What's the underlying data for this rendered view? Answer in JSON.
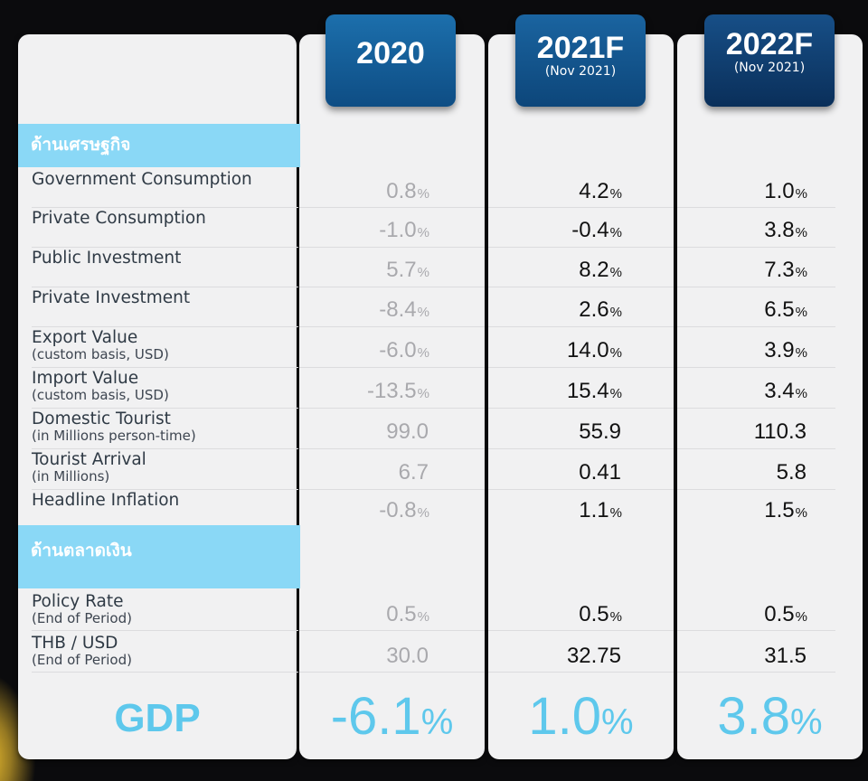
{
  "columns": [
    {
      "year": "2020",
      "sub": ""
    },
    {
      "year": "2021F",
      "sub": "(Nov 2021)"
    },
    {
      "year": "2022F",
      "sub": "(Nov 2021)"
    }
  ],
  "sections": {
    "economic": "ด้านเศรษฐกิจ",
    "monetary": "ด้านตลาดเงิน"
  },
  "rows": [
    {
      "label": "Government Consumption",
      "sub": "",
      "v2020": "0.8",
      "p2020": "%",
      "v2021": "4.2",
      "p2021": "%",
      "v2022": "1.0",
      "p2022": "%"
    },
    {
      "label": "Private Consumption",
      "sub": "",
      "v2020": "-1.0",
      "p2020": "%",
      "v2021": "-0.4",
      "p2021": "%",
      "v2022": "3.8",
      "p2022": "%"
    },
    {
      "label": "Public Investment",
      "sub": "",
      "v2020": "5.7",
      "p2020": "%",
      "v2021": "8.2",
      "p2021": "%",
      "v2022": "7.3",
      "p2022": "%"
    },
    {
      "label": "Private Investment",
      "sub": "",
      "v2020": "-8.4",
      "p2020": "%",
      "v2021": "2.6",
      "p2021": "%",
      "v2022": "6.5",
      "p2022": "%"
    },
    {
      "label": "Export Value",
      "sub": "(custom basis, USD)",
      "v2020": "-6.0",
      "p2020": "%",
      "v2021": "14.0",
      "p2021": "%",
      "v2022": "3.9",
      "p2022": "%"
    },
    {
      "label": "Import Value",
      "sub": "(custom basis, USD)",
      "v2020": "-13.5",
      "p2020": "%",
      "v2021": "15.4",
      "p2021": "%",
      "v2022": "3.4",
      "p2022": "%"
    },
    {
      "label": "Domestic Tourist",
      "sub": "(in Millions person-time)",
      "v2020": "99.0",
      "p2020": "",
      "v2021": "55.9",
      "p2021": "",
      "v2022": "110.3",
      "p2022": ""
    },
    {
      "label": "Tourist Arrival",
      "sub": "(in Millions)",
      "v2020": "6.7",
      "p2020": "",
      "v2021": "0.41",
      "p2021": "",
      "v2022": "5.8",
      "p2022": ""
    },
    {
      "label": "Headline Inflation",
      "sub": "",
      "v2020": "-0.8",
      "p2020": "%",
      "v2021": "1.1",
      "p2021": "%",
      "v2022": "1.5",
      "p2022": "%"
    },
    {
      "label": "Policy Rate",
      "sub": "(End of Period)",
      "v2020": "0.5",
      "p2020": "%",
      "v2021": "0.5",
      "p2021": "%",
      "v2022": "0.5",
      "p2022": "%"
    },
    {
      "label": "THB / USD",
      "sub": "(End of Period)",
      "v2020": "30.0",
      "p2020": "",
      "v2021": "32.75",
      "p2021": "",
      "v2022": "31.5",
      "p2022": ""
    }
  ],
  "gdp": {
    "label": "GDP",
    "v2020": "-6.1",
    "v2021": "1.0",
    "v2022": "3.8",
    "pct": "%"
  },
  "colors": {
    "header_blue": "#0e4d84",
    "section_cyan": "#8ad8f6",
    "gdp_cyan": "#5ec8ec",
    "muted_gray": "#a9a9ad"
  }
}
